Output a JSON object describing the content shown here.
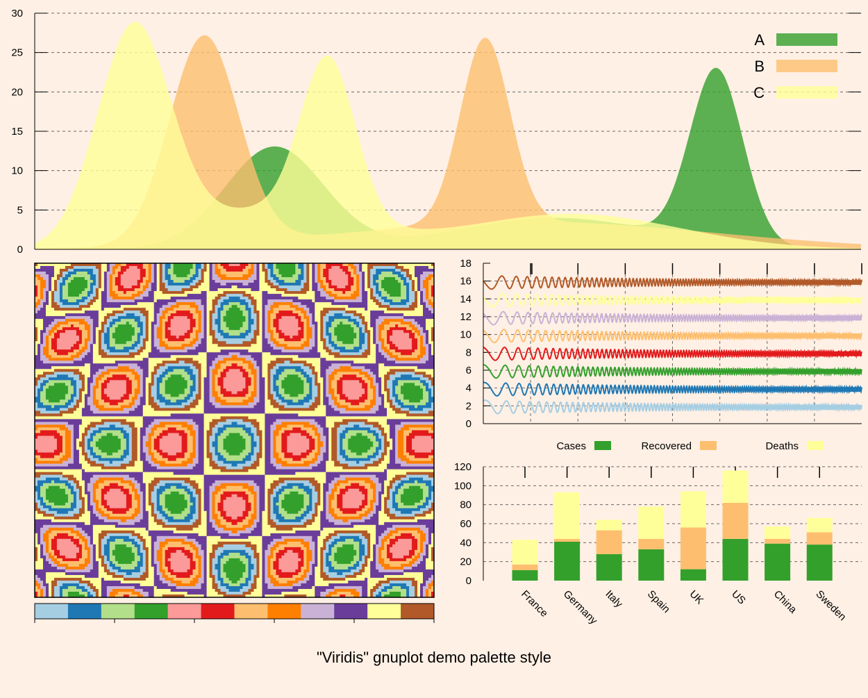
{
  "title": "\"Viridis\" gnuplot demo palette style",
  "palette": {
    "light_blue": "#a6cee3",
    "blue": "#1f78b4",
    "light_green": "#b2df8a",
    "green": "#33a02c",
    "pink": "#fb9a99",
    "red": "#e31a1c",
    "light_orange": "#fdbf6f",
    "orange": "#ff7f00",
    "lavender": "#cab2d6",
    "purple": "#6a3d9a",
    "yellow": "#ffff99",
    "brown": "#b15928",
    "background": "#fff0e5"
  },
  "chart_data": [
    {
      "type": "area",
      "title": "",
      "xlim": [
        0,
        100
      ],
      "ylim": [
        0,
        30
      ],
      "yticks": [
        "0",
        "5",
        "10",
        "15",
        "20",
        "25",
        "30"
      ],
      "grid": true,
      "legend_position": "top-right",
      "series": [
        {
          "name": "A",
          "color": "#33a02c",
          "components": [
            {
              "amp": 13.0,
              "mu": 29.0,
              "sigma": 6.0
            },
            {
              "amp": 4.0,
              "mu": 63.0,
              "sigma": 12.0
            },
            {
              "amp": 22.0,
              "mu": 82.5,
              "sigma": 3.2
            }
          ]
        },
        {
          "name": "B",
          "color": "#fdbf6f",
          "components": [
            {
              "amp": 26.5,
              "mu": 20.5,
              "sigma": 4.2
            },
            {
              "amp": 23.5,
              "mu": 54.5,
              "sigma": 3.0
            },
            {
              "amp": 3.5,
              "mu": 60.0,
              "sigma": 22.0
            }
          ]
        },
        {
          "name": "C",
          "color": "#ffff99",
          "components": [
            {
              "amp": 27.5,
              "mu": 12.0,
              "sigma": 4.4
            },
            {
              "amp": 20.5,
              "mu": 35.5,
              "sigma": 3.3
            },
            {
              "amp": 5.0,
              "mu": 28.0,
              "sigma": 10.0
            },
            {
              "amp": 4.5,
              "mu": 65.0,
              "sigma": 13.0
            }
          ]
        }
      ]
    },
    {
      "type": "heatmap",
      "title": "",
      "function": "cos(x)*cos(y) banded pattern",
      "colorbox": true,
      "colormap": [
        "#a6cee3",
        "#1f78b4",
        "#b2df8a",
        "#33a02c",
        "#fb9a99",
        "#e31a1c",
        "#fdbf6f",
        "#ff7f00",
        "#cab2d6",
        "#6a3d9a",
        "#ffff99",
        "#b15928"
      ],
      "colorbox_ticks": 6
    },
    {
      "type": "line",
      "title": "",
      "ylim": [
        0,
        18
      ],
      "yticks": [
        "0",
        "2",
        "4",
        "6",
        "8",
        "10",
        "12",
        "14",
        "16",
        "18"
      ],
      "xtick_count": 8,
      "grid": true,
      "series": [
        {
          "offset": 2,
          "color": "#a6cee3"
        },
        {
          "offset": 4,
          "color": "#1f78b4"
        },
        {
          "offset": 6,
          "color": "#33a02c"
        },
        {
          "offset": 8,
          "color": "#e31a1c"
        },
        {
          "offset": 10,
          "color": "#fdbf6f"
        },
        {
          "offset": 12,
          "color": "#cab2d6"
        },
        {
          "offset": 14,
          "color": "#ffff99"
        },
        {
          "offset": 16,
          "color": "#b15928"
        }
      ]
    },
    {
      "type": "bar",
      "stacked": true,
      "title": "",
      "ylim": [
        0,
        120
      ],
      "yticks": [
        "0",
        "20",
        "40",
        "60",
        "80",
        "100",
        "120"
      ],
      "grid": true,
      "legend_position": "top",
      "categories": [
        "France",
        "Germany",
        "Italy",
        "Spain",
        "UK",
        "US",
        "China",
        "Sweden"
      ],
      "series": [
        {
          "name": "Cases",
          "color": "#33a02c",
          "values": [
            11,
            41,
            28,
            33,
            12,
            44,
            39,
            38
          ]
        },
        {
          "name": "Recovered",
          "color": "#fdbf6f",
          "values": [
            6,
            3,
            25,
            11,
            44,
            38,
            5,
            13
          ]
        },
        {
          "name": "Deaths",
          "color": "#ffff99",
          "values": [
            26,
            49,
            11,
            34,
            38,
            34,
            13,
            15
          ]
        }
      ]
    }
  ]
}
